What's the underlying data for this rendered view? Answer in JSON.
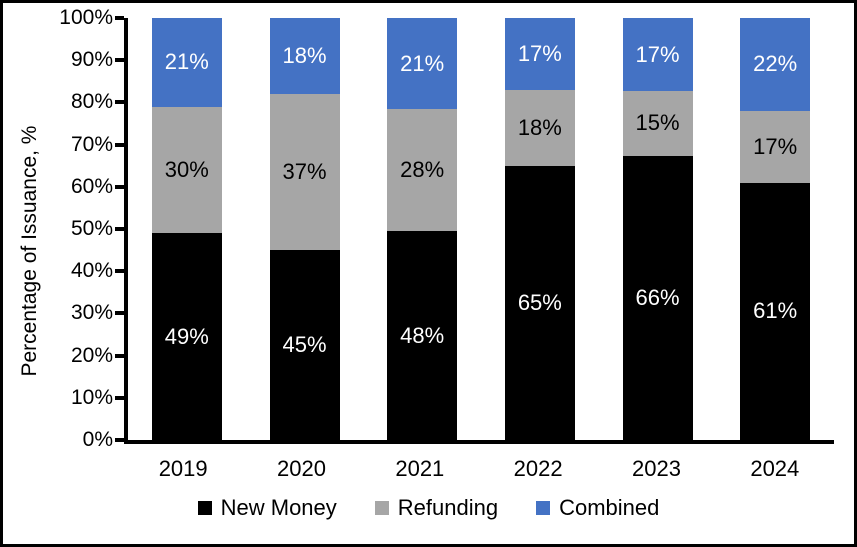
{
  "chart_data": {
    "type": "bar",
    "stacked": true,
    "orientation": "vertical",
    "title": "",
    "xlabel": "",
    "ylabel": "Percentage of Issuance, %",
    "ylim": [
      0,
      100
    ],
    "yticks": [
      {
        "value": 0,
        "label": "0%"
      },
      {
        "value": 10,
        "label": "10%"
      },
      {
        "value": 20,
        "label": "20%"
      },
      {
        "value": 30,
        "label": "30%"
      },
      {
        "value": 40,
        "label": "40%"
      },
      {
        "value": 50,
        "label": "50%"
      },
      {
        "value": 60,
        "label": "60%"
      },
      {
        "value": 70,
        "label": "70%"
      },
      {
        "value": 80,
        "label": "80%"
      },
      {
        "value": 90,
        "label": "90%"
      },
      {
        "value": 100,
        "label": "100%"
      }
    ],
    "grid": false,
    "legend_position": "bottom",
    "categories": [
      "2019",
      "2020",
      "2021",
      "2022",
      "2023",
      "2024"
    ],
    "series": [
      {
        "name": "New Money",
        "color": "#000000",
        "label_color": "#ffffff",
        "values": [
          49,
          45,
          48,
          65,
          66,
          61
        ]
      },
      {
        "name": "Refunding",
        "color": "#a6a6a6",
        "label_color": "#000000",
        "values": [
          30,
          37,
          28,
          18,
          15,
          17
        ]
      },
      {
        "name": "Combined",
        "color": "#4472c4",
        "label_color": "#ffffff",
        "values": [
          21,
          18,
          21,
          17,
          17,
          22
        ]
      }
    ],
    "value_suffix": "%",
    "axis_color": "#000000",
    "background_color": "#ffffff"
  }
}
